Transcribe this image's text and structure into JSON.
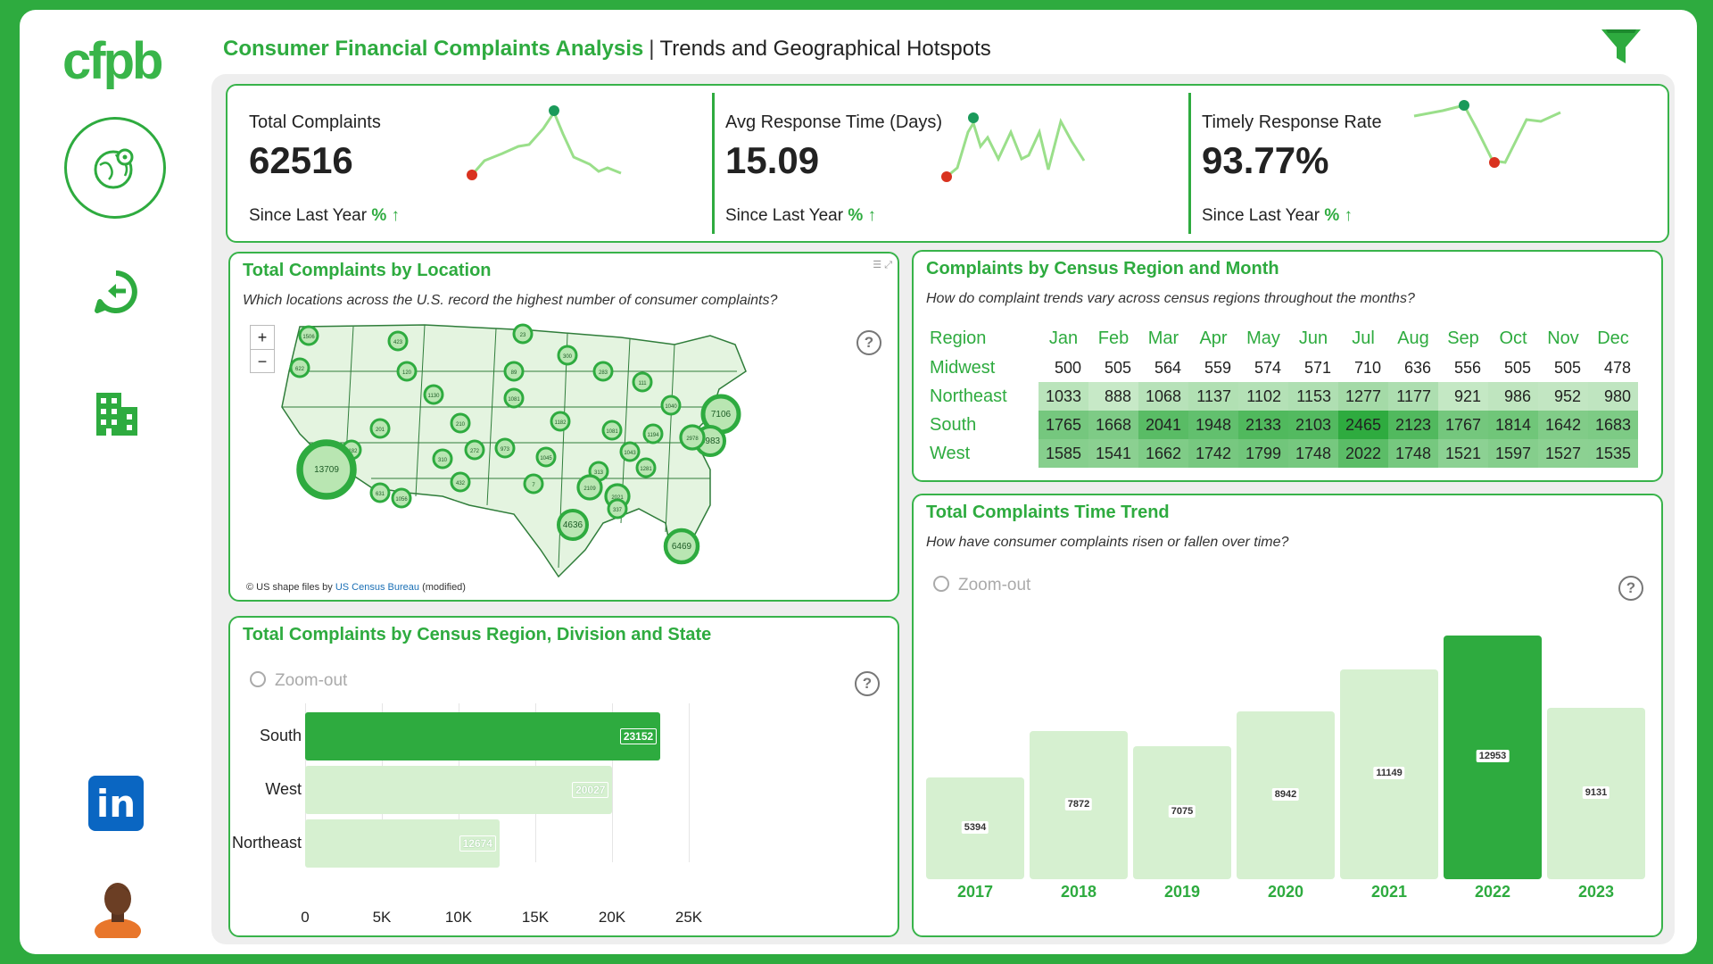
{
  "header": {
    "title_main": "Consumer Financial Complaints Analysis",
    "title_sep": "|",
    "title_sub": "Trends and Geographical Hotspots"
  },
  "sidebar": {
    "logo": "cfpb",
    "linkedin": "in"
  },
  "kpis": [
    {
      "label": "Total Complaints",
      "value": "62516",
      "foot": "Since Last Year",
      "pct": "%",
      "arrow": "↑"
    },
    {
      "label": "Avg Response Time (Days)",
      "value": "15.09",
      "foot": "Since Last Year",
      "pct": "%",
      "arrow": "↑"
    },
    {
      "label": "Timely Response Rate",
      "value": "93.77%",
      "foot": "Since Last Year",
      "pct": "%",
      "arrow": "↑"
    }
  ],
  "map": {
    "title": "Total Complaints by Location",
    "subtitle": "Which locations across the U.S. record the highest number of consumer complaints?",
    "zoom_in": "+",
    "zoom_out": "−",
    "help": "?",
    "credit_prefix": "© US shape files by",
    "credit_link": "US Census Bureau",
    "credit_suffix": "(modified)",
    "bubbles": [
      "1506",
      "423",
      "23",
      "622",
      "120",
      "89",
      "300",
      "283",
      "111",
      "1130",
      "1081",
      "7106",
      "210",
      "1040",
      "5983",
      "2978",
      "201",
      "1081",
      "1194",
      "1182",
      "313",
      "13709",
      "631",
      "973",
      "1045",
      "1281",
      "432",
      "7",
      "1056",
      "2109",
      "2021",
      "4636",
      "337",
      "6469",
      "310",
      "272",
      "1182",
      "1043"
    ]
  },
  "heatmap": {
    "title": "Complaints by Census Region and Month",
    "subtitle": "How do complaint trends vary across census regions throughout the months?",
    "region_header": "Region",
    "months": [
      "Jan",
      "Feb",
      "Mar",
      "Apr",
      "May",
      "Jun",
      "Jul",
      "Aug",
      "Sep",
      "Oct",
      "Nov",
      "Dec"
    ],
    "rows": [
      {
        "region": "Midwest",
        "values": [
          500,
          505,
          564,
          559,
          574,
          571,
          710,
          636,
          556,
          505,
          505,
          478
        ]
      },
      {
        "region": "Northeast",
        "values": [
          1033,
          888,
          1068,
          1137,
          1102,
          1153,
          1277,
          1177,
          921,
          986,
          952,
          980
        ]
      },
      {
        "region": "South",
        "values": [
          1765,
          1668,
          2041,
          1948,
          2133,
          2103,
          2465,
          2123,
          1767,
          1814,
          1642,
          1683
        ]
      },
      {
        "region": "West",
        "values": [
          1585,
          1541,
          1662,
          1742,
          1799,
          1748,
          2022,
          1748,
          1521,
          1597,
          1527,
          1535
        ]
      }
    ]
  },
  "state_chart": {
    "title": "Total Complaints by Census Region, Division and State",
    "zoom_label": "Zoom-out",
    "help": "?"
  },
  "trend_chart": {
    "title": "Total Complaints Time Trend",
    "subtitle": "How have consumer complaints risen or fallen over time?",
    "zoom_label": "Zoom-out",
    "help": "?"
  },
  "colors": {
    "brand_green": "#2eab3f",
    "light_bar": "#d6f0d0",
    "highlight_bar": "#2eab3f",
    "spark_line": "#9adf8a",
    "spark_min": "#d9321f",
    "spark_max": "#1a9a5a"
  },
  "chart_data": [
    {
      "type": "bar",
      "orientation": "horizontal",
      "categories": [
        "South",
        "West",
        "Northeast"
      ],
      "values": [
        23152,
        20027,
        12674
      ],
      "title": "Total Complaints by Census Region, Division and State",
      "xticks": [
        "0",
        "5K",
        "10K",
        "15K",
        "20K",
        "25K"
      ],
      "xlim": [
        0,
        25000
      ]
    },
    {
      "type": "bar",
      "categories": [
        "2017",
        "2018",
        "2019",
        "2020",
        "2021",
        "2022",
        "2023"
      ],
      "values": [
        5394,
        7872,
        7075,
        8942,
        11149,
        12953,
        9131
      ],
      "title": "Total Complaints Time Trend",
      "ylim": [
        0,
        13000
      ]
    }
  ]
}
